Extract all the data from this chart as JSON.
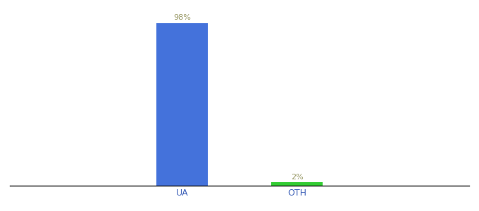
{
  "categories": [
    "UA",
    "OTH"
  ],
  "values": [
    98,
    2
  ],
  "bar_colors": [
    "#4472db",
    "#33cc33"
  ],
  "label_color": "#999966",
  "background_color": "#ffffff",
  "ylim": [
    0,
    108
  ],
  "bar_width": 0.45,
  "figsize": [
    6.8,
    3.0
  ],
  "dpi": 100,
  "annotations": [
    "98%",
    "2%"
  ],
  "xlabel_fontsize": 9,
  "annotation_fontsize": 8,
  "xlim": [
    -1.5,
    2.5
  ]
}
